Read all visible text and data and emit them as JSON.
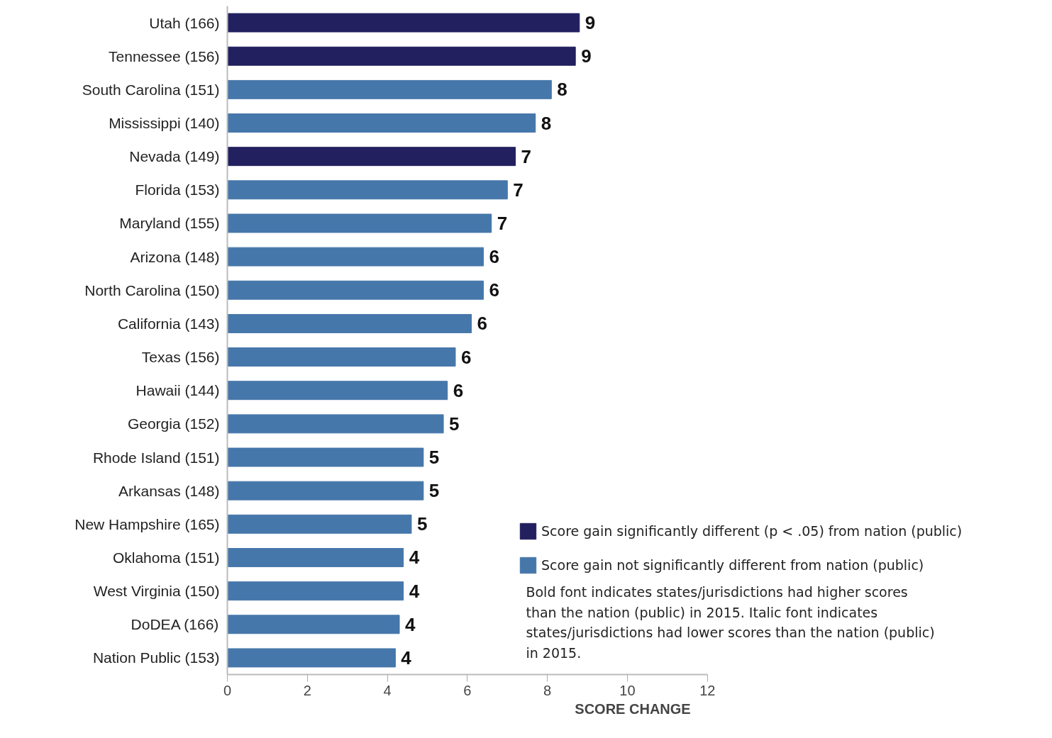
{
  "chart_data": {
    "type": "bar",
    "orientation": "horizontal",
    "xlabel": "SCORE CHANGE",
    "categories": [
      "Utah (166)",
      "Tennessee (156)",
      "South Carolina (151)",
      "Mississippi (140)",
      "Nevada (149)",
      "Florida (153)",
      "Maryland (155)",
      "Arizona (148)",
      "North Carolina (150)",
      "California (143)",
      "Texas (156)",
      "Hawaii (144)",
      "Georgia (152)",
      "Rhode Island (151)",
      "Arkansas (148)",
      "New Hampshire (165)",
      "Oklahoma (151)",
      "West Virginia (150)",
      "DoDEA (166)",
      "Nation Public (153)"
    ],
    "series": [
      {
        "name": "Score gain significantly different (p < .05) from nation (public)",
        "color": "#22205e",
        "values": [
          8.8,
          8.7,
          null,
          null,
          7.2,
          null,
          null,
          null,
          null,
          null,
          null,
          null,
          null,
          null,
          null,
          null,
          null,
          null,
          null,
          null
        ],
        "value_labels": [
          "9",
          "9",
          null,
          null,
          "7",
          null,
          null,
          null,
          null,
          null,
          null,
          null,
          null,
          null,
          null,
          null,
          null,
          null,
          null,
          null
        ]
      },
      {
        "name": "Score gain not significantly different from nation (public)",
        "color": "#4677aa",
        "values": [
          null,
          null,
          8.1,
          7.7,
          null,
          7.0,
          6.6,
          6.4,
          6.4,
          6.1,
          5.7,
          5.5,
          5.4,
          4.9,
          4.9,
          4.6,
          4.4,
          4.4,
          4.3,
          4.2
        ],
        "value_labels": [
          null,
          null,
          "8",
          "8",
          null,
          "7",
          "7",
          "6",
          "6",
          "6",
          "6",
          "6",
          "5",
          "5",
          "5",
          "5",
          "4",
          "4",
          "4",
          "4"
        ]
      }
    ],
    "xlim": [
      0,
      12
    ],
    "xticks": [
      0,
      2,
      4,
      6,
      8,
      10,
      12
    ],
    "grid": false,
    "legend": "bottom right",
    "annotations": [
      "Bold font indicates states/jurisdictions had higher scores than the nation (public) in 2015. Italic font indicates states/jurisdictions had lower scores than the nation (public) in 2015."
    ]
  }
}
